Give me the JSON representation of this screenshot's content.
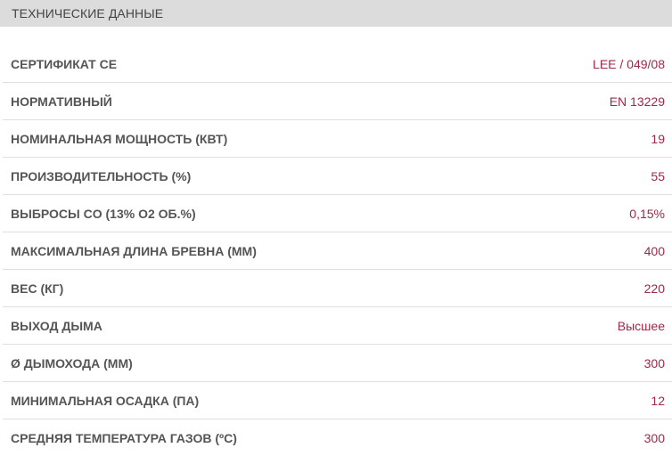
{
  "header": {
    "title": "ТЕХНИЧЕСКИЕ ДАННЫЕ"
  },
  "rows": [
    {
      "label": "СЕРТИФИКАТ CE",
      "value": "LEE / 049/08"
    },
    {
      "label": "НОРМАТИВНЫЙ",
      "value": "EN 13229"
    },
    {
      "label": "НОМИНАЛЬНАЯ МОЩНОСТЬ (КВТ)",
      "value": "19"
    },
    {
      "label": "ПРОИЗВОДИТЕЛЬНОСТЬ (%)",
      "value": "55"
    },
    {
      "label": "ВЫБРОСЫ CO (13% O2 ОБ.%)",
      "value": "0,15%"
    },
    {
      "label": "МАКСИМАЛЬНАЯ ДЛИНА БРЕВНА (ММ)",
      "value": "400"
    },
    {
      "label": "ВЕС (КГ)",
      "value": "220"
    },
    {
      "label": "ВЫХОД ДЫМА",
      "value": "Высшее"
    },
    {
      "label": "Ø ДЫМОХОДА (ММ)",
      "value": "300"
    },
    {
      "label": "МИНИМАЛЬНАЯ ОСАДКА (ПА)",
      "value": "12"
    },
    {
      "label": "СРЕДНЯЯ ТЕМПЕРАТУРА ГАЗОВ (ºC)",
      "value": "300"
    }
  ],
  "colors": {
    "header_bg": "#dcdcdc",
    "value": "#a02848",
    "label": "#555555"
  }
}
